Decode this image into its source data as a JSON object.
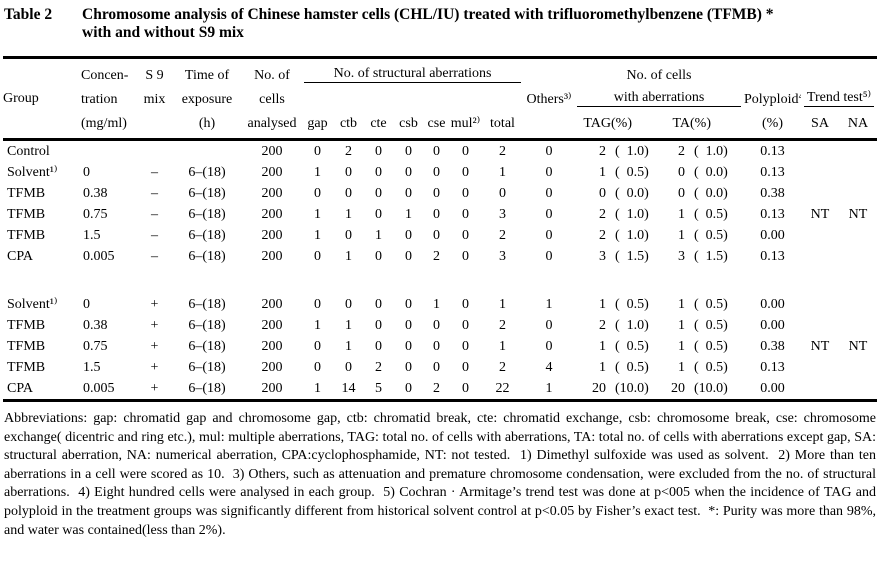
{
  "colors": {
    "text": "#000000",
    "background": "#ffffff",
    "rule": "#000000"
  },
  "title": {
    "label": "Table 2",
    "line1": "Chromosome analysis of Chinese hamster cells (CHL/IU) treated with trifluoromethylbenzene (TFMB) *",
    "line2": "with and without S9 mix"
  },
  "header": {
    "group": "Group",
    "concentration": [
      "Concen-",
      "tration",
      "(mg/ml)"
    ],
    "s9_mix": [
      "S 9",
      "mix"
    ],
    "time_of_exposure": [
      "Time of",
      "exposure",
      "(h)"
    ],
    "no_of_cells_analysed": [
      "No. of",
      "cells",
      "analysed"
    ],
    "structural_aberrations_group": "No. of structural aberrations",
    "structural_columns": [
      "gap",
      "ctb",
      "cte",
      "csb",
      "cse",
      "mul²⁾",
      "total"
    ],
    "others": "Others³⁾",
    "cells_with_aberrations_group": [
      "No. of cells",
      "with aberrations"
    ],
    "aberration_columns": [
      "TAG",
      "(%)",
      "TA",
      "(%)"
    ],
    "polyploid": "Polyploid⁴⁾",
    "polyploid_unit": "(%)",
    "trend_test_group": "Trend test⁵⁾",
    "trend_columns": [
      "SA",
      "NA"
    ]
  },
  "table": {
    "block_without_s9": [
      [
        "Control",
        "",
        "",
        "",
        "200",
        "0",
        "2",
        "0",
        "0",
        "0",
        "0",
        "2",
        "0",
        "2",
        "(  1.0)",
        "2",
        "(  1.0)",
        "0.13",
        "",
        ""
      ],
      [
        "Solvent¹⁾",
        "0",
        "–",
        "6–(18)",
        "200",
        "1",
        "0",
        "0",
        "0",
        "0",
        "0",
        "1",
        "0",
        "1",
        "(  0.5)",
        "0",
        "(  0.0)",
        "0.13",
        "",
        ""
      ],
      [
        "TFMB",
        "0.38",
        "–",
        "6–(18)",
        "200",
        "0",
        "0",
        "0",
        "0",
        "0",
        "0",
        "0",
        "0",
        "0",
        "(  0.0)",
        "0",
        "(  0.0)",
        "0.38",
        "",
        ""
      ],
      [
        "TFMB",
        "0.75",
        "–",
        "6–(18)",
        "200",
        "1",
        "1",
        "0",
        "1",
        "0",
        "0",
        "3",
        "0",
        "2",
        "(  1.0)",
        "1",
        "(  0.5)",
        "0.13",
        "NT",
        "NT"
      ],
      [
        "TFMB",
        "1.5",
        "–",
        "6–(18)",
        "200",
        "1",
        "0",
        "1",
        "0",
        "0",
        "0",
        "2",
        "0",
        "2",
        "(  1.0)",
        "1",
        "(  0.5)",
        "0.00",
        "",
        ""
      ],
      [
        "CPA",
        "0.005",
        "–",
        "6–(18)",
        "200",
        "0",
        "1",
        "0",
        "0",
        "2",
        "0",
        "3",
        "0",
        "3",
        "(  1.5)",
        "3",
        "(  1.5)",
        "0.13",
        "",
        ""
      ]
    ],
    "block_with_s9": [
      [
        "Solvent¹⁾",
        "0",
        "+",
        "6–(18)",
        "200",
        "0",
        "0",
        "0",
        "0",
        "1",
        "0",
        "1",
        "1",
        "1",
        "(  0.5)",
        "1",
        "(  0.5)",
        "0.00",
        "",
        ""
      ],
      [
        "TFMB",
        "0.38",
        "+",
        "6–(18)",
        "200",
        "1",
        "1",
        "0",
        "0",
        "0",
        "0",
        "2",
        "0",
        "2",
        "(  1.0)",
        "1",
        "(  0.5)",
        "0.00",
        "",
        ""
      ],
      [
        "TFMB",
        "0.75",
        "+",
        "6–(18)",
        "200",
        "0",
        "1",
        "0",
        "0",
        "0",
        "0",
        "1",
        "0",
        "1",
        "(  0.5)",
        "1",
        "(  0.5)",
        "0.38",
        "NT",
        "NT"
      ],
      [
        "TFMB",
        "1.5",
        "+",
        "6–(18)",
        "200",
        "0",
        "0",
        "2",
        "0",
        "0",
        "0",
        "2",
        "4",
        "1",
        "(  0.5)",
        "1",
        "(  0.5)",
        "0.13",
        "",
        ""
      ],
      [
        "CPA",
        "0.005",
        "+",
        "6–(18)",
        "200",
        "1",
        "14",
        "5",
        "0",
        "2",
        "0",
        "22",
        "1",
        "20",
        "(10.0)",
        "20",
        "(10.0)",
        "0.00",
        "",
        ""
      ]
    ]
  },
  "footnotes": {
    "text": "Abbreviations: gap: chromatid gap and chromosome gap, ctb: chromatid break, cte: chromatid exchange, csb: chromosome break, cse: chromosome exchange( dicentric and ring etc.), mul: multiple aberrations, TAG: total no. of cells with aberrations, TA: total no. of cells with aberrations except gap, SA: structural aberration, NA: numerical aberration, CPA:cyclophosphamide, NT: not tested.  1) Dimethyl sulfoxide was used as solvent.  2) More than ten aberrations in a cell were scored as 10.  3) Others, such as attenuation and premature chromosome condensation, were excluded from the no. of structural aberrations.  4) Eight hundred cells were analysed in each group.  5) Cochran · Armitage’s trend test was done at p<005 when the incidence of TAG and polyploid in the treatment groups was significantly different from historical solvent control at p<0.05 by Fisher’s exact test.  *: Purity was more than 98%, and water was contained(less than 2%)."
  }
}
